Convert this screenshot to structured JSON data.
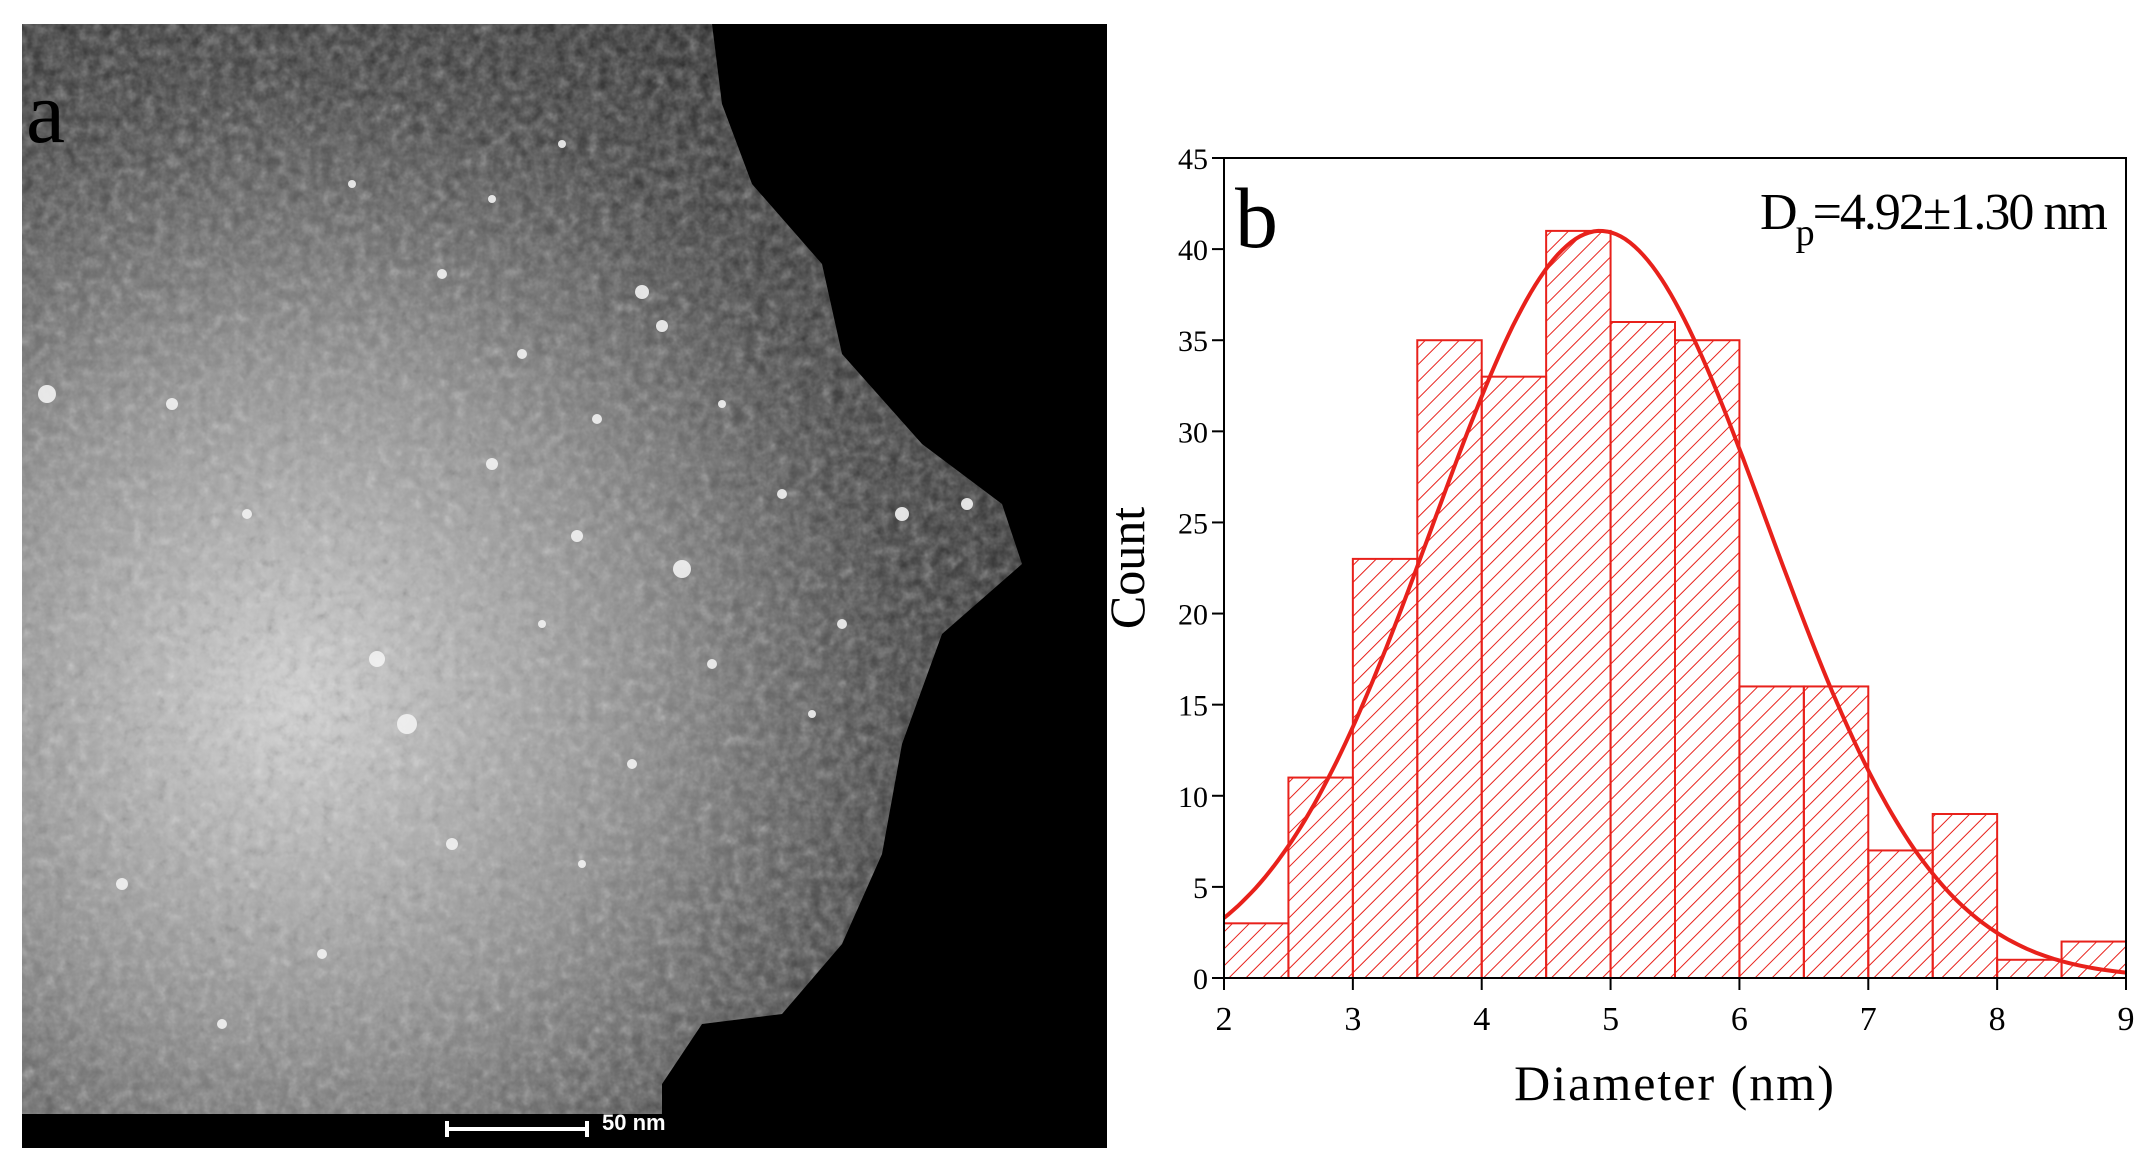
{
  "panel_a": {
    "label": "a",
    "scale_bar_text": "50 nm"
  },
  "panel_b": {
    "label": "b",
    "annotation_main": "D",
    "annotation_sub": "p",
    "annotation_rest": "=4.92±1.30 nm"
  },
  "chart_data": {
    "type": "bar",
    "title": "",
    "xlabel": "Diameter (nm)",
    "ylabel": "Count",
    "xlim": [
      2,
      9
    ],
    "ylim": [
      0,
      45
    ],
    "x_ticks": [
      "2",
      "3",
      "4",
      "5",
      "6",
      "7",
      "8",
      "9"
    ],
    "y_ticks": [
      "0",
      "5",
      "10",
      "15",
      "20",
      "25",
      "30",
      "35",
      "40",
      "45"
    ],
    "bin_width": 0.5,
    "bins": [
      {
        "x0": 2.0,
        "x1": 2.5,
        "count": 3
      },
      {
        "x0": 2.5,
        "x1": 3.0,
        "count": 11
      },
      {
        "x0": 3.0,
        "x1": 3.5,
        "count": 23
      },
      {
        "x0": 3.5,
        "x1": 4.0,
        "count": 35
      },
      {
        "x0": 4.0,
        "x1": 4.5,
        "count": 33
      },
      {
        "x0": 4.5,
        "x1": 5.0,
        "count": 41
      },
      {
        "x0": 5.0,
        "x1": 5.5,
        "count": 36
      },
      {
        "x0": 5.5,
        "x1": 6.0,
        "count": 35
      },
      {
        "x0": 6.0,
        "x1": 6.5,
        "count": 16
      },
      {
        "x0": 6.5,
        "x1": 7.0,
        "count": 16
      },
      {
        "x0": 7.0,
        "x1": 7.5,
        "count": 7
      },
      {
        "x0": 7.5,
        "x1": 8.0,
        "count": 9
      },
      {
        "x0": 8.0,
        "x1": 8.5,
        "count": 1
      },
      {
        "x0": 8.5,
        "x1": 9.0,
        "count": 2
      }
    ],
    "fit_curve": {
      "type": "gaussian",
      "mean": 4.92,
      "sd": 1.3,
      "peak": 41
    },
    "color": "#e8211b",
    "grid": false
  }
}
